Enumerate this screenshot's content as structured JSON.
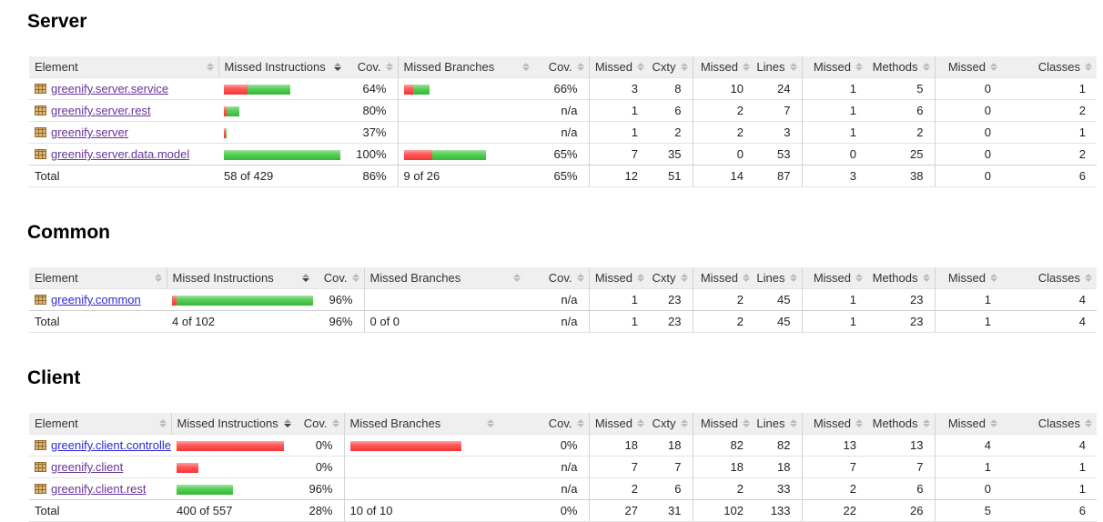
{
  "report": {
    "columns": [
      "Element",
      "Missed Instructions",
      "Cov.",
      "Missed Branches",
      "Cov.",
      "Missed",
      "Cxty",
      "Missed",
      "Lines",
      "Missed",
      "Methods",
      "Missed",
      "Classes"
    ],
    "sections": [
      {
        "title": "Server",
        "rows": [
          {
            "label": "greenify.server.service",
            "visited": true,
            "ibar": {
              "red": 26,
              "green": 47
            },
            "icov": "64%",
            "bbar": {
              "red": 10,
              "green": 18
            },
            "bcov": "66%",
            "m_cxty": "3",
            "cxty": "8",
            "m_lines": "10",
            "lines": "24",
            "m_methods": "1",
            "methods": "5",
            "m_classes": "0",
            "classes": "1"
          },
          {
            "label": "greenify.server.rest",
            "visited": true,
            "ibar": {
              "red": 3,
              "green": 14
            },
            "icov": "80%",
            "bbar": null,
            "bcov": "n/a",
            "m_cxty": "1",
            "cxty": "6",
            "m_lines": "2",
            "lines": "7",
            "m_methods": "1",
            "methods": "6",
            "m_classes": "0",
            "classes": "2"
          },
          {
            "label": "greenify.server",
            "visited": true,
            "ibar": {
              "red": 2,
              "green": 1
            },
            "icov": "37%",
            "bbar": null,
            "bcov": "n/a",
            "m_cxty": "1",
            "cxty": "2",
            "m_lines": "2",
            "lines": "3",
            "m_methods": "1",
            "methods": "2",
            "m_classes": "0",
            "classes": "1"
          },
          {
            "label": "greenify.server.data.model",
            "visited": true,
            "ibar": {
              "red": 0,
              "green": 128
            },
            "icov": "100%",
            "bbar": {
              "red": 31,
              "green": 59
            },
            "bcov": "65%",
            "m_cxty": "7",
            "cxty": "35",
            "m_lines": "0",
            "lines": "53",
            "m_methods": "0",
            "methods": "25",
            "m_classes": "0",
            "classes": "2"
          }
        ],
        "total": {
          "label": "Total",
          "itext": "58 of 429",
          "icov": "86%",
          "btext": "9 of 26",
          "bcov": "65%",
          "m_cxty": "12",
          "cxty": "51",
          "m_lines": "14",
          "lines": "87",
          "m_methods": "3",
          "methods": "38",
          "m_classes": "0",
          "classes": "6"
        }
      },
      {
        "title": "Common",
        "rows": [
          {
            "label": "greenify.common",
            "visited": false,
            "ibar": {
              "red": 5,
              "green": 150
            },
            "icov": "96%",
            "bbar": null,
            "bcov": "n/a",
            "m_cxty": "1",
            "cxty": "23",
            "m_lines": "2",
            "lines": "45",
            "m_methods": "1",
            "methods": "23",
            "m_classes": "1",
            "classes": "4"
          }
        ],
        "total": {
          "label": "Total",
          "itext": "4 of 102",
          "icov": "96%",
          "btext": "0 of 0",
          "bcov": "n/a",
          "m_cxty": "1",
          "cxty": "23",
          "m_lines": "2",
          "lines": "45",
          "m_methods": "1",
          "methods": "23",
          "m_classes": "1",
          "classes": "4"
        }
      },
      {
        "title": "Client",
        "rows": [
          {
            "label": "greenify.client.controller",
            "visited": false,
            "ibar": {
              "red": 118,
              "green": 0
            },
            "icov": "0%",
            "bbar": {
              "red": 122,
              "green": 0
            },
            "bcov": "0%",
            "m_cxty": "18",
            "cxty": "18",
            "m_lines": "82",
            "lines": "82",
            "m_methods": "13",
            "methods": "13",
            "m_classes": "4",
            "classes": "4"
          },
          {
            "label": "greenify.client",
            "visited": true,
            "ibar": {
              "red": 24,
              "green": 0
            },
            "icov": "0%",
            "bbar": null,
            "bcov": "n/a",
            "m_cxty": "7",
            "cxty": "7",
            "m_lines": "18",
            "lines": "18",
            "m_methods": "7",
            "methods": "7",
            "m_classes": "1",
            "classes": "1"
          },
          {
            "label": "greenify.client.rest",
            "visited": true,
            "ibar": {
              "red": 0,
              "green": 62
            },
            "icov": "96%",
            "bbar": null,
            "bcov": "n/a",
            "m_cxty": "2",
            "cxty": "6",
            "m_lines": "2",
            "lines": "33",
            "m_methods": "2",
            "methods": "6",
            "m_classes": "0",
            "classes": "1"
          }
        ],
        "total": {
          "label": "Total",
          "itext": "400 of 557",
          "icov": "28%",
          "btext": "10 of 10",
          "bcov": "0%",
          "m_cxty": "27",
          "cxty": "31",
          "m_lines": "102",
          "lines": "133",
          "m_methods": "22",
          "methods": "26",
          "m_classes": "5",
          "classes": "6"
        }
      }
    ]
  },
  "colors": {
    "bar_red": "#f54a4a",
    "bar_green": "#4cc44c",
    "link": "#2929d6",
    "link_visited": "#663399",
    "header_bg": "#efefef"
  }
}
